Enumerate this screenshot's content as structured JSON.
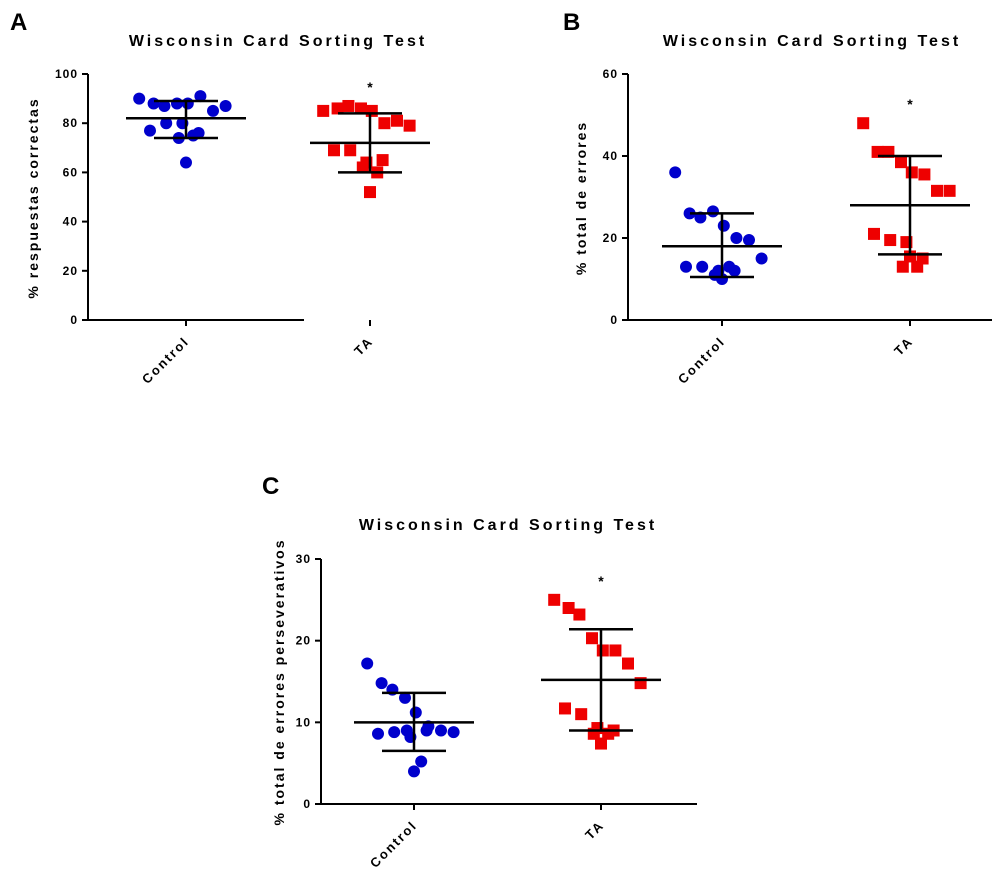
{
  "colors": {
    "control": "#0000cc",
    "ta": "#ee0000",
    "axis": "#000000"
  },
  "chart_data": [
    {
      "panel": "A",
      "type": "scatter",
      "title": "Wisconsin Card Sorting Test",
      "ylabel": "% respuestas correctas",
      "ylim": [
        0,
        100
      ],
      "yticks": [
        "0",
        "20",
        "40",
        "60",
        "80",
        "100"
      ],
      "categories": [
        "Control",
        "TA"
      ],
      "series": [
        {
          "name": "Control",
          "marker": "circle",
          "values": [
            90,
            88,
            87,
            88,
            88,
            91,
            85,
            87,
            77,
            80,
            80,
            76,
            74,
            75,
            64
          ],
          "mean": 82,
          "sd_upper": 89,
          "sd_lower": 74
        },
        {
          "name": "TA",
          "marker": "square",
          "values": [
            85,
            86,
            87,
            86,
            85,
            80,
            81,
            79,
            69,
            69,
            64,
            65,
            62,
            60,
            52
          ],
          "mean": 72,
          "sd_upper": 84,
          "sd_lower": 60
        }
      ],
      "annotation": "*"
    },
    {
      "panel": "B",
      "type": "scatter",
      "title": "Wisconsin Card Sorting Test",
      "ylabel": "% total de errores",
      "ylim": [
        0,
        60
      ],
      "yticks": [
        "0",
        "20",
        "40",
        "60"
      ],
      "categories": [
        "Control",
        "TA"
      ],
      "series": [
        {
          "name": "Control",
          "marker": "circle",
          "values": [
            36,
            26,
            25,
            26.5,
            23,
            20,
            19.5,
            15,
            13,
            13,
            12,
            12,
            11,
            13,
            10
          ],
          "mean": 18,
          "sd_upper": 26,
          "sd_lower": 10.5
        },
        {
          "name": "TA",
          "marker": "square",
          "values": [
            48,
            41,
            41,
            38.5,
            36,
            35.5,
            31.5,
            31.5,
            21,
            19.5,
            19,
            15,
            13,
            13,
            15.5
          ],
          "mean": 28,
          "sd_upper": 40,
          "sd_lower": 16
        }
      ],
      "annotation": "*"
    },
    {
      "panel": "C",
      "type": "scatter",
      "title": "Wisconsin Card Sorting Test",
      "ylabel": "% total de errores perseverativos",
      "ylim": [
        0,
        30
      ],
      "yticks": [
        "0",
        "10",
        "20",
        "30"
      ],
      "categories": [
        "Control",
        "TA"
      ],
      "series": [
        {
          "name": "Control",
          "marker": "circle",
          "values": [
            17.2,
            14.8,
            14,
            13,
            11.2,
            9.5,
            9,
            8.8,
            8.6,
            8.8,
            8.2,
            9,
            9,
            5.2,
            4
          ],
          "mean": 10,
          "sd_upper": 13.6,
          "sd_lower": 6.5
        },
        {
          "name": "TA",
          "marker": "square",
          "values": [
            25,
            24,
            23.2,
            20.3,
            18.8,
            18.8,
            17.2,
            14.8,
            11.7,
            11,
            9.3,
            9,
            8.6,
            8.6,
            7.4
          ],
          "mean": 15.2,
          "sd_upper": 21.4,
          "sd_lower": 9
        }
      ],
      "annotation": "*"
    }
  ]
}
